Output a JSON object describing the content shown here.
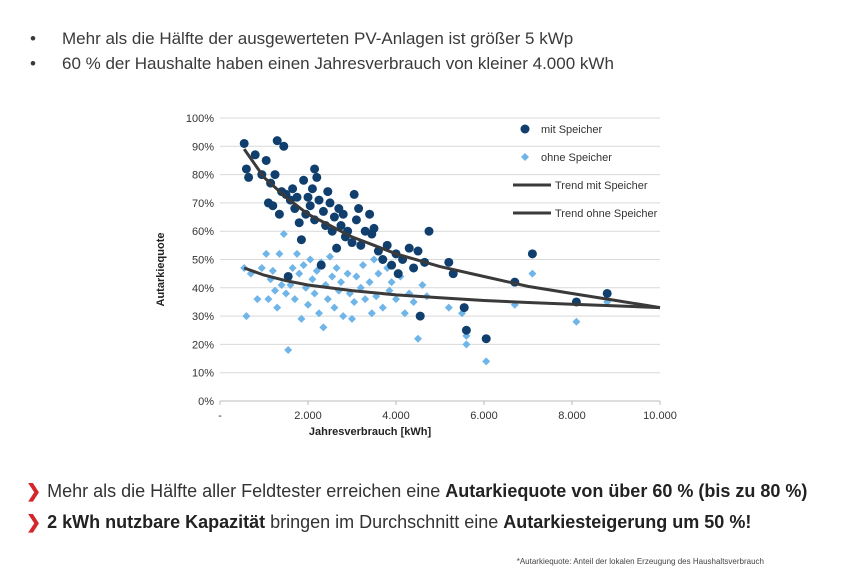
{
  "bullets": [
    "Mehr als die Hälfte der ausgewerteten PV-Anlagen ist größer 5 kWp",
    "60 % der Haushalte haben einen Jahresverbrauch von kleiner 4.000 kWh"
  ],
  "bullet_symbol": "•",
  "conclusions": [
    {
      "pre": "Mehr als die Hälfte aller Feldtester erreichen eine ",
      "bold": "Autarkiequote von über 60 % (bis zu 80 %)",
      "post": ""
    },
    {
      "pre_bold": "2 kWh nutzbare Kapazität",
      "mid": " bringen im Durchschnitt eine ",
      "bold": "Autarkiesteigerung um 50 %!"
    }
  ],
  "arrow_symbol": "❯",
  "footnote": "*Autarkiequote: Anteil der lokalen Erzeugung des Haushaltsverbrauch",
  "colors": {
    "mit": "#103f6e",
    "ohne": "#6fb5e8",
    "trend": "#3a3a3a",
    "grid": "#d9d9d9",
    "accent": "#d6262b"
  },
  "chart_data": {
    "type": "scatter",
    "xlabel": "Jahresverbrauch [kWh]",
    "ylabel": "Autarkiequote",
    "xlim": [
      0,
      10000
    ],
    "ylim": [
      0,
      100
    ],
    "x_ticks": [
      0,
      2000,
      4000,
      6000,
      8000,
      10000
    ],
    "x_tick_labels": [
      "-",
      "2.000",
      "4.000",
      "6.000",
      "8.000",
      "10.000"
    ],
    "y_ticks": [
      0,
      10,
      20,
      30,
      40,
      50,
      60,
      70,
      80,
      90,
      100
    ],
    "y_tick_labels": [
      "0%",
      "10%",
      "20%",
      "30%",
      "40%",
      "50%",
      "60%",
      "70%",
      "80%",
      "90%",
      "100%"
    ],
    "grid": "horizontal",
    "legend_position": "top-right",
    "series": [
      {
        "name": "mit Speicher",
        "marker": "circle",
        "points": [
          [
            550,
            91
          ],
          [
            600,
            82
          ],
          [
            650,
            79
          ],
          [
            800,
            87
          ],
          [
            950,
            80
          ],
          [
            1050,
            85
          ],
          [
            1100,
            70
          ],
          [
            1150,
            77
          ],
          [
            1200,
            69
          ],
          [
            1250,
            80
          ],
          [
            1300,
            92
          ],
          [
            1350,
            66
          ],
          [
            1400,
            74
          ],
          [
            1450,
            90
          ],
          [
            1500,
            73
          ],
          [
            1550,
            44
          ],
          [
            1600,
            71
          ],
          [
            1650,
            75
          ],
          [
            1700,
            68
          ],
          [
            1750,
            72
          ],
          [
            1800,
            63
          ],
          [
            1850,
            57
          ],
          [
            1900,
            78
          ],
          [
            1950,
            66
          ],
          [
            2000,
            72
          ],
          [
            2050,
            69
          ],
          [
            2100,
            75
          ],
          [
            2150,
            82
          ],
          [
            2150,
            64
          ],
          [
            2200,
            79
          ],
          [
            2250,
            71
          ],
          [
            2300,
            48
          ],
          [
            2350,
            67
          ],
          [
            2400,
            62
          ],
          [
            2450,
            74
          ],
          [
            2500,
            70
          ],
          [
            2550,
            60
          ],
          [
            2600,
            65
          ],
          [
            2650,
            54
          ],
          [
            2700,
            68
          ],
          [
            2750,
            62
          ],
          [
            2800,
            66
          ],
          [
            2850,
            58
          ],
          [
            2900,
            60
          ],
          [
            3000,
            56
          ],
          [
            3050,
            73
          ],
          [
            3100,
            64
          ],
          [
            3150,
            68
          ],
          [
            3200,
            55
          ],
          [
            3300,
            60
          ],
          [
            3400,
            66
          ],
          [
            3450,
            59
          ],
          [
            3500,
            61
          ],
          [
            3600,
            53
          ],
          [
            3700,
            50
          ],
          [
            3800,
            55
          ],
          [
            3900,
            48
          ],
          [
            4000,
            52
          ],
          [
            4050,
            45
          ],
          [
            4150,
            50
          ],
          [
            4300,
            54
          ],
          [
            4400,
            47
          ],
          [
            4500,
            53
          ],
          [
            4550,
            30
          ],
          [
            4650,
            49
          ],
          [
            4750,
            60
          ],
          [
            5200,
            49
          ],
          [
            5300,
            45
          ],
          [
            5550,
            33
          ],
          [
            5600,
            25
          ],
          [
            6050,
            22
          ],
          [
            6700,
            42
          ],
          [
            7100,
            52
          ],
          [
            8100,
            35
          ],
          [
            8800,
            38
          ]
        ]
      },
      {
        "name": "ohne Speicher",
        "marker": "diamond",
        "points": [
          [
            550,
            47
          ],
          [
            600,
            30
          ],
          [
            700,
            45
          ],
          [
            850,
            36
          ],
          [
            950,
            47
          ],
          [
            1050,
            52
          ],
          [
            1100,
            36
          ],
          [
            1150,
            43
          ],
          [
            1200,
            46
          ],
          [
            1250,
            39
          ],
          [
            1300,
            33
          ],
          [
            1350,
            52
          ],
          [
            1400,
            41
          ],
          [
            1450,
            59
          ],
          [
            1500,
            38
          ],
          [
            1550,
            18
          ],
          [
            1600,
            41
          ],
          [
            1650,
            47
          ],
          [
            1700,
            36
          ],
          [
            1750,
            52
          ],
          [
            1800,
            45
          ],
          [
            1850,
            29
          ],
          [
            1900,
            48
          ],
          [
            1950,
            40
          ],
          [
            2000,
            34
          ],
          [
            2050,
            50
          ],
          [
            2100,
            43
          ],
          [
            2150,
            38
          ],
          [
            2200,
            46
          ],
          [
            2250,
            31
          ],
          [
            2300,
            49
          ],
          [
            2350,
            26
          ],
          [
            2400,
            41
          ],
          [
            2450,
            36
          ],
          [
            2500,
            51
          ],
          [
            2550,
            44
          ],
          [
            2600,
            33
          ],
          [
            2650,
            47
          ],
          [
            2700,
            39
          ],
          [
            2750,
            42
          ],
          [
            2800,
            30
          ],
          [
            2900,
            45
          ],
          [
            2950,
            38
          ],
          [
            3000,
            29
          ],
          [
            3050,
            35
          ],
          [
            3100,
            44
          ],
          [
            3200,
            40
          ],
          [
            3250,
            48
          ],
          [
            3300,
            36
          ],
          [
            3400,
            42
          ],
          [
            3450,
            31
          ],
          [
            3500,
            50
          ],
          [
            3550,
            37
          ],
          [
            3600,
            45
          ],
          [
            3700,
            33
          ],
          [
            3800,
            47
          ],
          [
            3850,
            39
          ],
          [
            3900,
            42
          ],
          [
            4000,
            36
          ],
          [
            4100,
            44
          ],
          [
            4200,
            31
          ],
          [
            4300,
            38
          ],
          [
            4400,
            35
          ],
          [
            4500,
            22
          ],
          [
            4600,
            41
          ],
          [
            4700,
            37
          ],
          [
            5200,
            33
          ],
          [
            5500,
            31
          ],
          [
            5600,
            23
          ],
          [
            5600,
            20
          ],
          [
            6050,
            14
          ],
          [
            6700,
            34
          ],
          [
            7100,
            45
          ],
          [
            8100,
            28
          ],
          [
            8800,
            35
          ]
        ]
      },
      {
        "name": "Trend mit Speicher",
        "type": "line",
        "points": [
          [
            550,
            89
          ],
          [
            1000,
            79
          ],
          [
            1500,
            72
          ],
          [
            2000,
            66
          ],
          [
            2500,
            62
          ],
          [
            3000,
            58
          ],
          [
            3500,
            55
          ],
          [
            4000,
            52
          ],
          [
            5000,
            47.5
          ],
          [
            6000,
            44
          ],
          [
            7000,
            40.5
          ],
          [
            8000,
            38
          ],
          [
            9000,
            35.5
          ],
          [
            10000,
            33
          ]
        ]
      },
      {
        "name": "Trend ohne Speicher",
        "type": "line",
        "points": [
          [
            550,
            47
          ],
          [
            1000,
            44.5
          ],
          [
            1500,
            42.5
          ],
          [
            2000,
            41
          ],
          [
            3000,
            39
          ],
          [
            4000,
            37.5
          ],
          [
            5000,
            36.5
          ],
          [
            6000,
            35.5
          ],
          [
            7000,
            34.8
          ],
          [
            8000,
            34.2
          ],
          [
            9000,
            33.6
          ],
          [
            10000,
            33
          ]
        ]
      }
    ]
  }
}
